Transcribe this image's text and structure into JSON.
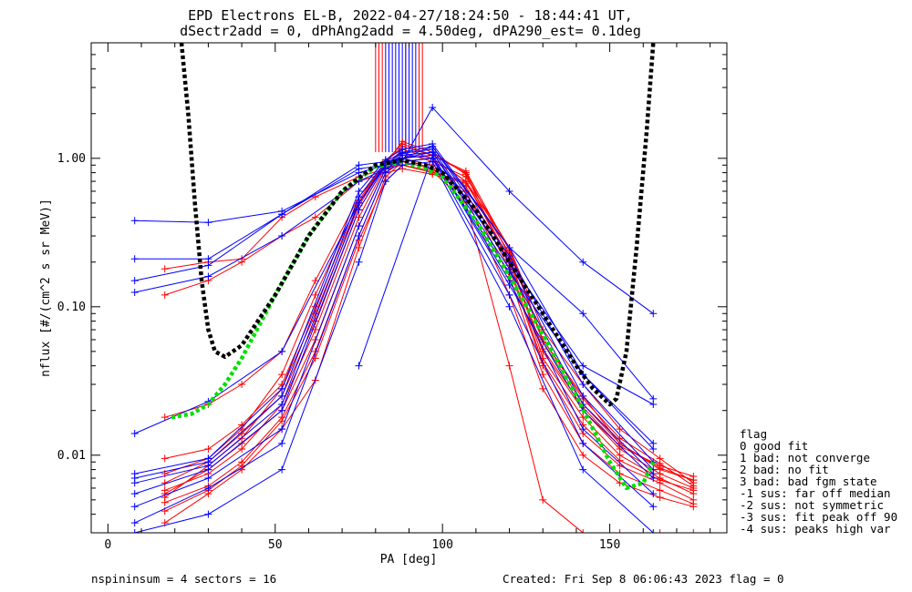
{
  "figure": {
    "title_line1": "EPD Electrons EL-B, 2022-04-27/18:24:50 - 18:44:41 UT,",
    "title_line2": "dSectr2add = 0, dPhAng2add = 4.50deg, dPA290_est=   0.1deg",
    "footer_left": "nspininsum =  4  sectors = 16",
    "footer_right": "Created: Fri Sep  8 06:06:43 2023   flag = 0"
  },
  "legend": {
    "title": "flag",
    "entries": [
      " 0 good fit",
      " 1 bad: not converge",
      " 2 bad: no fit",
      " 3 bad: bad fgm state",
      "-1 sus: far off median",
      "-2 sus: not symmetric",
      "-3 sus: fit peak off 90",
      "-4 sus: peaks high var"
    ]
  },
  "chart_data": {
    "type": "line",
    "xlabel": "PA [deg]",
    "ylabel": "nflux [#/(cm^2 s sr MeV)]",
    "xlim": [
      -5,
      185
    ],
    "ylim": [
      0.003,
      6.0
    ],
    "yscale": "log",
    "x_ticks": [
      0,
      50,
      100,
      150
    ],
    "x_tick_labels": [
      "0",
      "50",
      "100",
      "150"
    ],
    "y_ticks": [
      0.01,
      0.1,
      1.0
    ],
    "y_tick_labels": [
      "0.01",
      "0.10",
      "1.00"
    ],
    "colors": {
      "red": "#ff0000",
      "blue": "#0000ff",
      "fit_median": "#000000",
      "fit_good": "#00e000"
    },
    "series": [
      {
        "color": "red",
        "x": [
          17,
          30,
          40,
          52,
          62,
          75,
          83,
          88,
          97,
          107,
          120,
          130,
          142,
          153,
          165,
          175
        ],
        "y": [
          0.0055,
          0.008,
          0.012,
          0.02,
          0.06,
          0.35,
          0.85,
          1.05,
          1.0,
          0.7,
          0.2,
          0.05,
          0.02,
          0.011,
          0.0075,
          0.006
        ]
      },
      {
        "color": "red",
        "x": [
          17,
          30,
          40,
          52,
          62,
          75,
          83,
          88,
          97,
          107,
          120,
          130,
          142,
          153,
          165,
          175
        ],
        "y": [
          0.0065,
          0.009,
          0.014,
          0.025,
          0.08,
          0.45,
          0.9,
          1.1,
          0.95,
          0.75,
          0.25,
          0.06,
          0.025,
          0.012,
          0.008,
          0.0068
        ]
      },
      {
        "color": "red",
        "x": [
          17,
          30,
          40,
          52,
          62,
          75,
          83,
          88,
          97,
          107,
          120,
          130,
          142,
          153,
          165,
          175
        ],
        "y": [
          0.0095,
          0.011,
          0.016,
          0.03,
          0.1,
          0.5,
          0.95,
          1.2,
          1.05,
          0.8,
          0.22,
          0.045,
          0.018,
          0.01,
          0.007,
          0.0055
        ]
      },
      {
        "color": "red",
        "x": [
          17,
          30,
          40,
          52,
          62,
          75,
          83,
          88,
          97,
          107,
          120,
          130,
          142,
          153,
          165,
          175
        ],
        "y": [
          0.018,
          0.022,
          0.03,
          0.05,
          0.15,
          0.55,
          0.9,
          1.0,
          0.9,
          0.65,
          0.18,
          0.04,
          0.014,
          0.0085,
          0.0065,
          0.005
        ]
      },
      {
        "color": "red",
        "x": [
          17,
          30,
          40,
          52,
          62,
          75,
          83,
          88,
          97,
          107,
          120,
          130,
          142,
          153,
          165,
          175
        ],
        "y": [
          0.0048,
          0.0062,
          0.009,
          0.018,
          0.05,
          0.3,
          0.8,
          1.0,
          0.85,
          0.6,
          0.16,
          0.035,
          0.012,
          0.0075,
          0.0058,
          0.0047
        ]
      },
      {
        "color": "red",
        "x": [
          17,
          30,
          40,
          52,
          62,
          75,
          83,
          88,
          97,
          107,
          120,
          130,
          142,
          153,
          165,
          175
        ],
        "y": [
          0.0058,
          0.0075,
          0.011,
          0.022,
          0.07,
          0.4,
          0.88,
          1.15,
          1.0,
          0.7,
          0.21,
          0.052,
          0.021,
          0.0115,
          0.0085,
          0.0072
        ]
      },
      {
        "color": "red",
        "x": [
          17,
          30,
          40,
          52,
          62,
          75,
          83,
          88,
          97,
          107,
          120,
          130,
          142,
          153,
          165,
          175
        ],
        "y": [
          0.18,
          0.2,
          0.21,
          0.4,
          0.55,
          0.75,
          0.85,
          0.9,
          0.8,
          0.7,
          0.25,
          0.07,
          0.03,
          0.015,
          0.0095,
          0.0065
        ]
      },
      {
        "color": "red",
        "x": [
          17,
          30,
          40,
          52,
          62,
          75,
          83,
          88,
          97,
          107,
          120,
          130,
          142,
          153,
          165,
          175
        ],
        "y": [
          0.12,
          0.15,
          0.2,
          0.3,
          0.4,
          0.7,
          0.8,
          0.85,
          0.78,
          0.68,
          0.23,
          0.06,
          0.024,
          0.013,
          0.0088,
          0.0062
        ]
      },
      {
        "color": "red",
        "x": [
          17,
          30,
          40,
          52,
          62,
          75,
          83,
          88,
          97,
          107,
          120,
          130,
          142,
          153,
          165,
          175
        ],
        "y": [
          0.0035,
          0.0055,
          0.008,
          0.015,
          0.032,
          0.25,
          0.75,
          0.95,
          0.85,
          0.55,
          0.12,
          0.028,
          0.01,
          0.0065,
          0.0052,
          0.0045
        ]
      },
      {
        "color": "red",
        "x": [
          17,
          30,
          40,
          52,
          62,
          75,
          83,
          88,
          97,
          107,
          120,
          130,
          142,
          153,
          165,
          175
        ],
        "y": [
          0.0052,
          0.0085,
          0.013,
          0.028,
          0.09,
          0.48,
          0.92,
          1.3,
          1.1,
          0.78,
          0.19,
          0.042,
          0.016,
          0.0092,
          0.0068,
          0.0058
        ]
      },
      {
        "color": "red",
        "x": [
          17,
          30,
          40,
          52,
          62,
          75,
          83,
          88,
          97,
          107,
          120,
          130,
          142,
          153,
          165,
          175
        ],
        "y": [
          0.0075,
          0.0095,
          0.015,
          0.035,
          0.12,
          0.52,
          0.96,
          1.25,
          1.05,
          0.82,
          0.24,
          0.058,
          0.022,
          0.012,
          0.0082,
          0.0068
        ]
      },
      {
        "color": "red",
        "x": [
          17,
          30,
          40,
          52,
          62,
          75,
          83,
          88,
          97,
          107,
          120,
          130,
          142,
          153,
          165,
          175
        ],
        "y": [
          0.0042,
          0.0058,
          0.0085,
          0.017,
          0.045,
          0.28,
          0.7,
          0.9,
          0.82,
          0.5,
          0.04,
          0.005,
          0.003,
          0.003,
          0.003,
          0.003
        ]
      },
      {
        "color": "blue",
        "x": [
          8,
          30,
          52,
          75,
          83,
          88,
          97,
          120,
          142,
          163
        ],
        "y": [
          0.007,
          0.009,
          0.025,
          0.55,
          0.95,
          1.1,
          1.2,
          0.22,
          0.03,
          0.009
        ]
      },
      {
        "color": "blue",
        "x": [
          8,
          30,
          52,
          75,
          83,
          88,
          97,
          120,
          142,
          163
        ],
        "y": [
          0.0055,
          0.008,
          0.02,
          0.45,
          0.9,
          1.05,
          1.1,
          0.18,
          0.022,
          0.0075
        ]
      },
      {
        "color": "blue",
        "x": [
          8,
          30,
          52,
          75,
          83,
          88,
          97,
          120,
          142,
          163
        ],
        "y": [
          0.0045,
          0.007,
          0.015,
          0.35,
          0.85,
          1.0,
          1.05,
          0.15,
          0.015,
          0.0055
        ]
      },
      {
        "color": "blue",
        "x": [
          8,
          30,
          52,
          75,
          83,
          88,
          97,
          120,
          142,
          163
        ],
        "y": [
          0.0075,
          0.0095,
          0.028,
          0.6,
          0.98,
          1.15,
          1.25,
          0.25,
          0.035,
          0.011
        ]
      },
      {
        "color": "blue",
        "x": [
          8,
          30,
          52,
          75,
          83,
          88,
          97,
          120,
          142,
          163
        ],
        "y": [
          0.0035,
          0.006,
          0.012,
          0.3,
          0.8,
          0.95,
          1.0,
          0.12,
          0.012,
          0.0045
        ]
      },
      {
        "color": "blue",
        "x": [
          8,
          30,
          52,
          75,
          83,
          88,
          97,
          120,
          142,
          163
        ],
        "y": [
          0.0065,
          0.0085,
          0.022,
          0.5,
          0.92,
          1.08,
          1.15,
          0.2,
          0.025,
          0.008
        ]
      },
      {
        "color": "blue",
        "x": [
          8,
          30,
          52,
          75,
          83,
          88,
          97,
          120,
          142,
          163
        ],
        "y": [
          0.38,
          0.37,
          0.44,
          0.8,
          0.9,
          0.95,
          2.2,
          0.6,
          0.2,
          0.09
        ]
      },
      {
        "color": "blue",
        "x": [
          8,
          30,
          52,
          75,
          83,
          88,
          97,
          120,
          142,
          163
        ],
        "y": [
          0.21,
          0.21,
          0.42,
          0.9,
          0.95,
          1.0,
          1.2,
          0.25,
          0.09,
          0.024
        ]
      },
      {
        "color": "blue",
        "x": [
          8,
          30,
          52,
          75,
          83,
          88,
          97,
          120,
          142,
          163
        ],
        "y": [
          0.15,
          0.19,
          0.42,
          0.85,
          0.9,
          1.0,
          1.1,
          0.2,
          0.04,
          0.022
        ]
      },
      {
        "color": "blue",
        "x": [
          8,
          30,
          52,
          75,
          83,
          88,
          97,
          120,
          142,
          163
        ],
        "y": [
          0.125,
          0.16,
          0.3,
          0.7,
          0.85,
          0.95,
          1.0,
          0.17,
          0.035,
          0.012
        ]
      },
      {
        "color": "blue",
        "x": [
          8,
          30,
          52,
          75,
          83,
          88,
          97,
          120,
          142,
          163
        ],
        "y": [
          0.014,
          0.023,
          0.05,
          0.5,
          0.9,
          1.0,
          1.05,
          0.14,
          0.02,
          0.007
        ]
      },
      {
        "color": "blue",
        "x": [
          8,
          30,
          52,
          75,
          83,
          88,
          97,
          120,
          142,
          163
        ],
        "y": [
          0.003,
          0.004,
          0.008,
          0.2,
          0.7,
          0.9,
          0.95,
          0.1,
          0.008,
          0.003
        ]
      }
    ],
    "blue_spikes_x": [
      83,
      84,
      85,
      86,
      87,
      88,
      89,
      90,
      91,
      92
    ],
    "red_spikes_x": [
      80,
      81,
      82,
      89,
      90,
      93,
      94
    ],
    "spike_y_range": [
      1.1,
      6.0
    ],
    "blue_outlier": {
      "x": [
        75,
        97
      ],
      "y": [
        0.04,
        1.05
      ]
    },
    "fit_median": {
      "x": [
        22,
        24,
        26,
        28,
        30,
        32,
        35,
        40,
        50,
        60,
        70,
        80,
        88,
        95,
        100,
        110,
        120,
        130,
        140,
        145,
        150,
        152,
        155,
        158,
        161,
        163
      ],
      "y": [
        6.0,
        2.0,
        0.5,
        0.15,
        0.07,
        0.05,
        0.046,
        0.055,
        0.12,
        0.3,
        0.6,
        0.9,
        0.97,
        0.9,
        0.8,
        0.45,
        0.2,
        0.09,
        0.04,
        0.028,
        0.022,
        0.024,
        0.05,
        0.25,
        1.5,
        6.0
      ]
    },
    "fit_good": {
      "x": [
        19,
        25,
        30,
        35,
        40,
        50,
        60,
        70,
        80,
        88,
        95,
        100,
        110,
        120,
        130,
        140,
        150,
        155,
        160,
        163
      ],
      "y": [
        0.018,
        0.019,
        0.022,
        0.03,
        0.045,
        0.12,
        0.3,
        0.6,
        0.88,
        0.95,
        0.85,
        0.75,
        0.38,
        0.16,
        0.065,
        0.025,
        0.009,
        0.006,
        0.0065,
        0.009
      ]
    }
  }
}
